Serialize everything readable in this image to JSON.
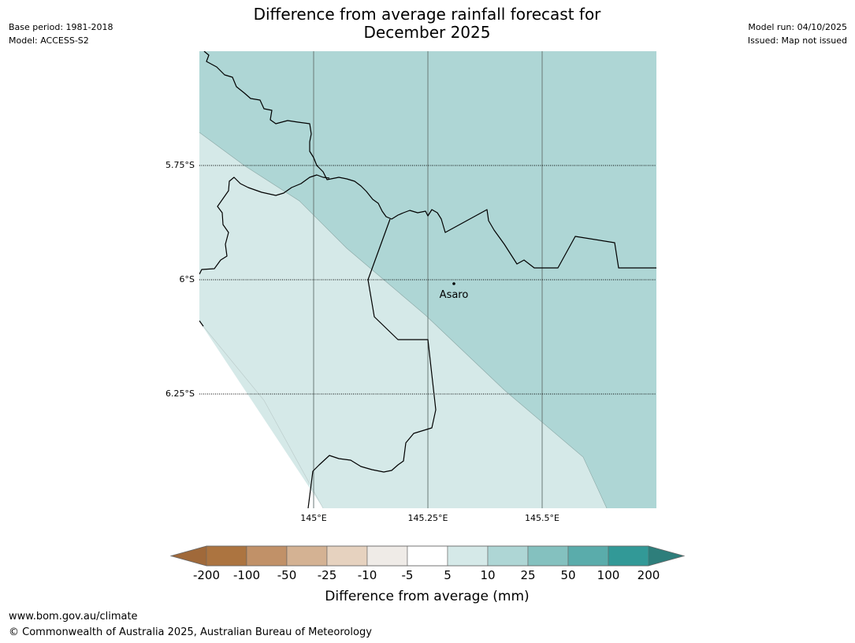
{
  "header": {
    "title_line1": "Difference from average rainfall forecast for",
    "title_line2": "December 2025",
    "base_period": "Base period: 1981-2018",
    "model": "Model: ACCESS-S2",
    "model_run": "Model run: 04/10/2025",
    "issued": "Issued: Map not issued"
  },
  "map": {
    "latitude_labels": [
      "5.75°S",
      "6°S",
      "6.25°S"
    ],
    "longitude_labels": [
      "145°E",
      "145.25°E",
      "145.5°E"
    ],
    "place": {
      "name": "Asaro"
    },
    "zone_colors": {
      "band_5_10": "#d5e9e8",
      "band_10_25": "#aed6d5",
      "outside": "#ffffff"
    },
    "border_color": "#000000",
    "gridline_color": "#6b7a78"
  },
  "legend": {
    "tick_labels": [
      "-200",
      "-100",
      "-50",
      "-25",
      "-10",
      "-5",
      "5",
      "10",
      "25",
      "50",
      "100",
      "200"
    ],
    "swatch_colors": [
      "#a0693a",
      "#ac7440",
      "#c19168",
      "#d4b293",
      "#e6d2bf",
      "#efebe7",
      "#ffffff",
      "#d5e9e8",
      "#aed6d5",
      "#84c1bf",
      "#5aacab",
      "#329997",
      "#2e7e7b"
    ],
    "axis_label": "Difference from average (mm)"
  },
  "footer": {
    "url": "www.bom.gov.au/climate",
    "copyright": "© Commonwealth of Australia 2025, Australian Bureau of Meteorology"
  }
}
